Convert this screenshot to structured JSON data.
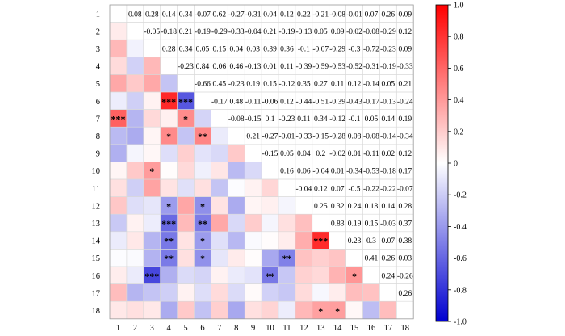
{
  "chart_data": {
    "type": "heatmap",
    "title": "",
    "xlabel": "",
    "ylabel": "",
    "row_labels": [
      "1",
      "2",
      "3",
      "4",
      "5",
      "6",
      "7",
      "8",
      "9",
      "10",
      "11",
      "12",
      "13",
      "14",
      "15",
      "16",
      "17",
      "18"
    ],
    "col_labels": [
      "1",
      "2",
      "3",
      "4",
      "5",
      "6",
      "7",
      "8",
      "9",
      "10",
      "11",
      "12",
      "13",
      "14",
      "15",
      "16",
      "17",
      "18"
    ],
    "upper_triangle_labels_shown": true,
    "lower_triangle_colored_cells": true,
    "values": [
      [
        null,
        0.08,
        0.28,
        0.14,
        0.34,
        -0.07,
        0.62,
        -0.27,
        -0.31,
        0.04,
        0.12,
        0.22,
        -0.21,
        -0.08,
        -0.01,
        0.07,
        0.26,
        0.09
      ],
      [
        0.08,
        null,
        -0.05,
        -0.18,
        0.21,
        -0.19,
        -0.29,
        -0.33,
        -0.04,
        0.21,
        -0.19,
        -0.13,
        0.05,
        0.09,
        -0.02,
        -0.08,
        -0.29,
        0.12
      ],
      [
        0.28,
        -0.05,
        null,
        0.28,
        0.34,
        0.05,
        0.15,
        0.04,
        0.03,
        0.39,
        0.36,
        -0.1,
        -0.07,
        -0.29,
        -0.3,
        -0.72,
        -0.23,
        0.09
      ],
      [
        0.14,
        -0.18,
        0.28,
        null,
        -0.23,
        0.84,
        0.06,
        0.46,
        -0.13,
        0.01,
        0.11,
        -0.39,
        -0.59,
        -0.53,
        -0.52,
        -0.31,
        -0.19,
        -0.33
      ],
      [
        0.34,
        0.21,
        0.34,
        -0.23,
        null,
        -0.66,
        0.45,
        -0.23,
        0.19,
        0.15,
        -0.12,
        0.35,
        0.27,
        0.11,
        0.12,
        -0.14,
        0.05,
        0.21
      ],
      [
        -0.07,
        -0.19,
        0.05,
        0.84,
        -0.66,
        null,
        -0.17,
        0.48,
        -0.11,
        -0.06,
        0.12,
        -0.44,
        -0.51,
        -0.39,
        -0.43,
        -0.17,
        -0.13,
        -0.24
      ],
      [
        0.62,
        -0.29,
        0.15,
        0.06,
        0.45,
        -0.17,
        null,
        -0.08,
        -0.15,
        0.1,
        -0.23,
        0.11,
        0.34,
        -0.12,
        -0.1,
        0.05,
        0.14,
        0.19
      ],
      [
        -0.27,
        -0.33,
        0.04,
        0.46,
        -0.23,
        0.48,
        -0.08,
        null,
        0.21,
        -0.27,
        -0.01,
        -0.33,
        -0.15,
        -0.28,
        0.08,
        -0.08,
        -0.14,
        -0.34
      ],
      [
        -0.31,
        -0.04,
        0.03,
        -0.13,
        0.19,
        -0.11,
        -0.15,
        0.21,
        null,
        -0.15,
        0.05,
        0.04,
        0.2,
        -0.02,
        0.01,
        -0.11,
        0.02,
        0.12
      ],
      [
        0.04,
        0.21,
        0.39,
        0.01,
        0.15,
        -0.06,
        0.1,
        -0.27,
        -0.15,
        null,
        0.16,
        0.06,
        -0.04,
        0.01,
        -0.34,
        -0.53,
        -0.18,
        0.17
      ],
      [
        0.12,
        -0.19,
        0.36,
        0.11,
        -0.12,
        0.12,
        -0.23,
        -0.01,
        0.05,
        0.16,
        null,
        -0.04,
        0.12,
        0.07,
        -0.5,
        -0.22,
        -0.22,
        -0.07
      ],
      [
        0.22,
        -0.13,
        -0.1,
        -0.39,
        0.35,
        -0.44,
        0.11,
        -0.33,
        0.04,
        0.06,
        -0.04,
        null,
        0.25,
        0.32,
        0.24,
        0.18,
        0.14,
        0.28
      ],
      [
        -0.21,
        0.05,
        -0.07,
        -0.59,
        0.27,
        -0.51,
        0.34,
        -0.15,
        0.2,
        -0.04,
        0.12,
        0.25,
        null,
        0.83,
        0.19,
        0.15,
        -0.03,
        0.37
      ],
      [
        -0.08,
        0.09,
        -0.29,
        -0.53,
        0.11,
        -0.39,
        -0.12,
        -0.28,
        -0.02,
        0.01,
        0.07,
        0.32,
        0.83,
        null,
        0.23,
        0.3,
        0.07,
        0.38
      ],
      [
        -0.01,
        -0.02,
        -0.3,
        -0.52,
        0.12,
        -0.43,
        -0.1,
        0.08,
        0.01,
        -0.34,
        -0.5,
        0.24,
        0.19,
        0.23,
        null,
        0.41,
        0.26,
        0.03
      ],
      [
        0.07,
        -0.08,
        -0.72,
        -0.31,
        -0.14,
        -0.17,
        0.05,
        -0.08,
        -0.11,
        -0.53,
        -0.22,
        0.18,
        0.15,
        0.3,
        0.41,
        null,
        0.24,
        -0.26
      ],
      [
        0.26,
        -0.29,
        -0.23,
        -0.19,
        0.05,
        -0.13,
        0.14,
        -0.14,
        0.02,
        -0.18,
        -0.22,
        0.14,
        -0.03,
        0.07,
        0.26,
        0.24,
        null,
        0.26
      ],
      [
        0.09,
        0.12,
        0.09,
        -0.33,
        0.21,
        -0.24,
        0.19,
        -0.34,
        0.12,
        0.17,
        -0.07,
        0.28,
        0.37,
        0.38,
        0.03,
        -0.26,
        0.26,
        null
      ]
    ],
    "significance": [
      {
        "row": "6",
        "col": "4",
        "mark": "***"
      },
      {
        "row": "6",
        "col": "5",
        "mark": "***"
      },
      {
        "row": "7",
        "col": "1",
        "mark": "***"
      },
      {
        "row": "7",
        "col": "5",
        "mark": "*"
      },
      {
        "row": "8",
        "col": "4",
        "mark": "*"
      },
      {
        "row": "8",
        "col": "6",
        "mark": "**"
      },
      {
        "row": "10",
        "col": "3",
        "mark": "*"
      },
      {
        "row": "12",
        "col": "4",
        "mark": "*"
      },
      {
        "row": "12",
        "col": "6",
        "mark": "*"
      },
      {
        "row": "13",
        "col": "4",
        "mark": "***"
      },
      {
        "row": "13",
        "col": "6",
        "mark": "**"
      },
      {
        "row": "14",
        "col": "4",
        "mark": "**"
      },
      {
        "row": "14",
        "col": "6",
        "mark": "*"
      },
      {
        "row": "14",
        "col": "13",
        "mark": "***"
      },
      {
        "row": "15",
        "col": "4",
        "mark": "**"
      },
      {
        "row": "15",
        "col": "6",
        "mark": "*"
      },
      {
        "row": "15",
        "col": "11",
        "mark": "**"
      },
      {
        "row": "16",
        "col": "3",
        "mark": "***"
      },
      {
        "row": "16",
        "col": "10",
        "mark": "**"
      },
      {
        "row": "16",
        "col": "15",
        "mark": "*"
      },
      {
        "row": "18",
        "col": "13",
        "mark": "*"
      },
      {
        "row": "18",
        "col": "14",
        "mark": "*"
      }
    ],
    "colorbar": {
      "min": -1.0,
      "max": 1.0,
      "ticks": [
        "-1.0",
        "-0.8",
        "-0.6",
        "-0.4",
        "-0.2",
        "0",
        "0.2",
        "0.4",
        "0.6",
        "0.8",
        "1.0"
      ],
      "colors": {
        "negative": "#0000d0",
        "zero": "#ffffff",
        "positive": "#ff0000"
      }
    },
    "grid": true,
    "legend": "colorbar-right"
  }
}
